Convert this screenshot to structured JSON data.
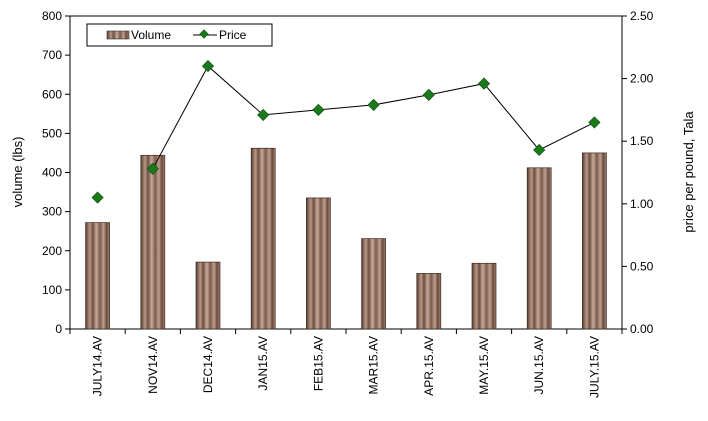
{
  "chart_data": {
    "type": "bar",
    "categories": [
      "JULY14.AV",
      "NOV14.AV",
      "DEC14.AV",
      "JAN15.AV",
      "FEB15.AV",
      "MAR15.AV",
      "APR.15.AV",
      "MAY.15.AV",
      "JUN.15.AV",
      "JULY.15.AV"
    ],
    "series": [
      {
        "name": "Volume",
        "kind": "bar",
        "axis": "left",
        "color": "#8b6b5c",
        "values": [
          272,
          444,
          171,
          462,
          335,
          231,
          142,
          168,
          412,
          450
        ]
      },
      {
        "name": "Price",
        "kind": "line",
        "axis": "right",
        "color": "#1a7a1a",
        "values": [
          1.05,
          1.28,
          2.1,
          1.71,
          1.75,
          1.79,
          1.87,
          1.96,
          1.43,
          1.65
        ],
        "line_connects_from_index": 1
      }
    ],
    "ylabel": "volume (lbs)",
    "y2label": "price per pound, Tala",
    "ylim": [
      0,
      800
    ],
    "y2lim": [
      0,
      2.5
    ],
    "yticks": [
      "0",
      "100",
      "200",
      "300",
      "400",
      "500",
      "600",
      "700",
      "800"
    ],
    "y2ticks": [
      "0.00",
      "0.50",
      "1.00",
      "1.50",
      "2.00",
      "2.50"
    ],
    "grid": false,
    "legend": "top-left"
  }
}
